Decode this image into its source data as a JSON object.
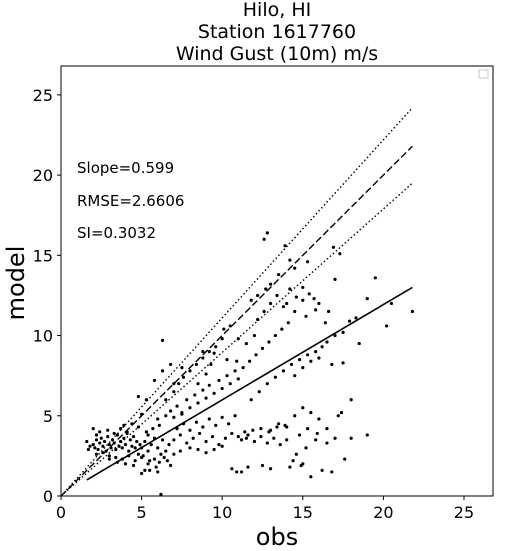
{
  "chart_data": {
    "type": "scatter",
    "title_lines": [
      "Hilo, HI",
      "Station 1617760",
      "Wind Gust (10m) m/s"
    ],
    "xlabel": "obs",
    "ylabel": "model",
    "xlim": [
      0,
      26.8
    ],
    "ylim": [
      0,
      26.8
    ],
    "xticks": [
      0,
      5,
      10,
      15,
      20,
      25
    ],
    "yticks": [
      0,
      5,
      10,
      15,
      20,
      25
    ],
    "grid": false,
    "legend": "top-right (empty)",
    "stats": [
      "Slope=0.599",
      "RMSE=2.6606",
      "SI=0.3032"
    ],
    "one_to_one_line": {
      "x": [
        0,
        21.8
      ],
      "y": [
        0,
        21.8
      ]
    },
    "bounds_lines": [
      {
        "x": [
          0,
          21.8
        ],
        "y": [
          0,
          24.2
        ]
      },
      {
        "x": [
          0,
          21.8
        ],
        "y": [
          0,
          19.5
        ]
      }
    ],
    "fit_line": {
      "x": [
        1.6,
        21.8
      ],
      "y": [
        1.0,
        13.0
      ]
    },
    "points": [
      [
        2.0,
        3.2
      ],
      [
        2.1,
        3.0
      ],
      [
        2.2,
        3.5
      ],
      [
        2.3,
        2.9
      ],
      [
        2.4,
        3.3
      ],
      [
        2.5,
        3.6
      ],
      [
        2.6,
        3.1
      ],
      [
        2.7,
        3.4
      ],
      [
        2.8,
        2.8
      ],
      [
        2.9,
        3.7
      ],
      [
        3.0,
        3.2
      ],
      [
        3.1,
        3.0
      ],
      [
        3.2,
        3.5
      ],
      [
        3.3,
        3.3
      ],
      [
        3.4,
        2.9
      ],
      [
        3.5,
        3.8
      ],
      [
        3.6,
        3.1
      ],
      [
        3.7,
        3.4
      ],
      [
        3.8,
        3.0
      ],
      [
        3.9,
        3.6
      ],
      [
        4.0,
        3.2
      ],
      [
        4.1,
        3.9
      ],
      [
        4.2,
        2.8
      ],
      [
        4.3,
        3.5
      ],
      [
        4.4,
        3.1
      ],
      [
        4.5,
        3.7
      ],
      [
        4.6,
        3.0
      ],
      [
        4.7,
        3.4
      ],
      [
        4.8,
        2.6
      ],
      [
        4.9,
        3.2
      ],
      [
        2.2,
        2.6
      ],
      [
        2.6,
        2.7
      ],
      [
        3.0,
        2.5
      ],
      [
        3.4,
        2.4
      ],
      [
        3.8,
        2.3
      ],
      [
        4.2,
        2.5
      ],
      [
        4.6,
        2.2
      ],
      [
        5.0,
        2.4
      ],
      [
        5.4,
        2.0
      ],
      [
        5.8,
        2.3
      ],
      [
        2.4,
        4.0
      ],
      [
        2.9,
        4.1
      ],
      [
        3.3,
        3.9
      ],
      [
        3.7,
        4.2
      ],
      [
        4.1,
        4.0
      ],
      [
        1.6,
        3.4
      ],
      [
        1.8,
        3.1
      ],
      [
        2.0,
        4.2
      ],
      [
        1.7,
        2.9
      ],
      [
        2.2,
        3.8
      ],
      [
        5.0,
        3.0
      ],
      [
        5.2,
        3.4
      ],
      [
        5.4,
        2.8
      ],
      [
        5.6,
        3.2
      ],
      [
        5.8,
        3.6
      ],
      [
        6.0,
        3.0
      ],
      [
        6.2,
        2.6
      ],
      [
        5.1,
        2.5
      ],
      [
        5.5,
        2.2
      ],
      [
        6.1,
        2.1
      ],
      [
        5.3,
        4.0
      ],
      [
        5.7,
        4.2
      ],
      [
        6.1,
        4.4
      ],
      [
        5.4,
        3.8
      ],
      [
        6.3,
        3.5
      ],
      [
        6.5,
        2.8
      ],
      [
        6.7,
        3.2
      ],
      [
        6.4,
        2.4
      ],
      [
        5.9,
        1.8
      ],
      [
        5.2,
        1.6
      ],
      [
        4.5,
        1.9
      ],
      [
        4.0,
        2.0
      ],
      [
        3.5,
        2.1
      ],
      [
        3.0,
        2.3
      ],
      [
        5.0,
        1.4
      ],
      [
        5.5,
        1.6
      ],
      [
        6.0,
        1.5
      ],
      [
        4.8,
        4.3
      ],
      [
        4.4,
        4.5
      ],
      [
        3.9,
        4.4
      ],
      [
        6.0,
        4.8
      ],
      [
        6.5,
        5.0
      ],
      [
        6.8,
        5.3
      ],
      [
        7.0,
        4.9
      ],
      [
        7.2,
        5.6
      ],
      [
        7.5,
        5.2
      ],
      [
        7.8,
        6.0
      ],
      [
        8.0,
        5.5
      ],
      [
        8.3,
        6.3
      ],
      [
        8.5,
        5.8
      ],
      [
        8.8,
        6.6
      ],
      [
        9.0,
        6.1
      ],
      [
        9.2,
        6.9
      ],
      [
        9.5,
        6.4
      ],
      [
        9.8,
        7.2
      ],
      [
        10.0,
        6.7
      ],
      [
        10.3,
        7.5
      ],
      [
        10.5,
        7.0
      ],
      [
        10.8,
        7.8
      ],
      [
        11.0,
        7.3
      ],
      [
        6.5,
        6.0
      ],
      [
        7.0,
        6.5
      ],
      [
        7.3,
        7.0
      ],
      [
        7.6,
        7.4
      ],
      [
        8.0,
        7.8
      ],
      [
        8.4,
        8.2
      ],
      [
        8.8,
        8.6
      ],
      [
        9.2,
        9.0
      ],
      [
        9.6,
        9.3
      ],
      [
        10.0,
        9.8
      ],
      [
        7.0,
        3.5
      ],
      [
        7.4,
        3.8
      ],
      [
        7.8,
        3.3
      ],
      [
        8.2,
        3.6
      ],
      [
        8.6,
        3.9
      ],
      [
        9.0,
        3.4
      ],
      [
        9.4,
        3.7
      ],
      [
        9.8,
        3.2
      ],
      [
        10.2,
        3.6
      ],
      [
        10.6,
        3.9
      ],
      [
        7.2,
        4.2
      ],
      [
        7.6,
        4.5
      ],
      [
        8.0,
        4.1
      ],
      [
        8.4,
        4.6
      ],
      [
        8.8,
        4.3
      ],
      [
        9.2,
        4.8
      ],
      [
        9.6,
        4.4
      ],
      [
        10.0,
        4.9
      ],
      [
        10.4,
        4.5
      ],
      [
        10.8,
        5.0
      ],
      [
        11.2,
        3.5
      ],
      [
        11.6,
        3.8
      ],
      [
        12.0,
        3.4
      ],
      [
        12.4,
        3.7
      ],
      [
        12.8,
        3.3
      ],
      [
        13.2,
        3.6
      ],
      [
        13.6,
        3.2
      ],
      [
        14.0,
        3.5
      ],
      [
        11.0,
        3.7
      ],
      [
        11.5,
        3.6
      ],
      [
        11.3,
        8.0
      ],
      [
        11.7,
        8.4
      ],
      [
        12.1,
        8.8
      ],
      [
        12.5,
        9.2
      ],
      [
        12.9,
        9.6
      ],
      [
        13.3,
        10.0
      ],
      [
        13.7,
        10.4
      ],
      [
        14.1,
        10.8
      ],
      [
        11.5,
        9.5
      ],
      [
        12.0,
        10.0
      ],
      [
        12.2,
        11.0
      ],
      [
        12.6,
        11.5
      ],
      [
        13.0,
        12.0
      ],
      [
        13.4,
        12.5
      ],
      [
        12.7,
        12.9
      ],
      [
        13.0,
        13.2
      ],
      [
        14.2,
        12.9
      ],
      [
        15.0,
        12.2
      ],
      [
        14.5,
        11.5
      ],
      [
        13.8,
        11.8
      ],
      [
        11.8,
        6.0
      ],
      [
        12.3,
        6.5
      ],
      [
        12.8,
        7.0
      ],
      [
        13.3,
        7.4
      ],
      [
        13.8,
        7.8
      ],
      [
        14.3,
        8.2
      ],
      [
        14.8,
        8.5
      ],
      [
        15.3,
        8.8
      ],
      [
        15.8,
        9.0
      ],
      [
        16.2,
        9.3
      ],
      [
        14.5,
        7.5
      ],
      [
        15.0,
        8.0
      ],
      [
        15.5,
        8.4
      ],
      [
        16.0,
        8.6
      ],
      [
        16.5,
        9.6
      ],
      [
        17.0,
        10.0
      ],
      [
        17.5,
        10.2
      ],
      [
        15.2,
        11.2
      ],
      [
        15.8,
        11.6
      ],
      [
        16.4,
        10.8
      ],
      [
        14.0,
        12.0
      ],
      [
        14.6,
        12.4
      ],
      [
        15.0,
        13.0
      ],
      [
        15.4,
        12.6
      ],
      [
        16.0,
        12.0
      ],
      [
        16.6,
        11.5
      ],
      [
        17.0,
        13.5
      ],
      [
        17.3,
        15.1
      ],
      [
        16.9,
        15.5
      ],
      [
        15.3,
        14.6
      ],
      [
        12.8,
        16.4
      ],
      [
        12.6,
        16.0
      ],
      [
        14.2,
        14.7
      ],
      [
        13.9,
        15.6
      ],
      [
        14.5,
        14.2
      ],
      [
        13.5,
        13.8
      ],
      [
        12.2,
        12.5
      ],
      [
        11.8,
        12.2
      ],
      [
        17.5,
        8.3
      ],
      [
        18.0,
        6.0
      ],
      [
        11.6,
        1.8
      ],
      [
        11.2,
        1.5
      ],
      [
        12.5,
        1.9
      ],
      [
        13.0,
        1.7
      ],
      [
        14.2,
        1.8
      ],
      [
        15.5,
        1.2
      ],
      [
        16.2,
        1.6
      ],
      [
        16.8,
        1.5
      ],
      [
        15.0,
        2.0
      ],
      [
        14.6,
        2.6
      ],
      [
        13.0,
        4.1
      ],
      [
        13.5,
        4.5
      ],
      [
        14.0,
        4.3
      ],
      [
        14.5,
        5.0
      ],
      [
        15.0,
        5.5
      ],
      [
        15.5,
        5.2
      ],
      [
        16.0,
        4.8
      ],
      [
        16.5,
        4.2
      ],
      [
        15.2,
        3.0
      ],
      [
        15.8,
        3.5
      ],
      [
        14.8,
        3.8
      ],
      [
        15.3,
        4.2
      ],
      [
        15.9,
        3.9
      ],
      [
        16.5,
        3.3
      ],
      [
        17.0,
        3.6
      ],
      [
        17.4,
        5.2
      ],
      [
        17.2,
        5.0
      ],
      [
        18.0,
        3.6
      ],
      [
        19.0,
        3.8
      ],
      [
        17.6,
        2.3
      ],
      [
        17.9,
        10.9
      ],
      [
        18.3,
        11.1
      ],
      [
        19.5,
        13.6
      ],
      [
        20.2,
        10.6
      ],
      [
        21.8,
        11.5
      ],
      [
        19.0,
        12.3
      ],
      [
        20.5,
        12.0
      ],
      [
        18.5,
        9.5
      ],
      [
        16.8,
        8.2
      ],
      [
        15.7,
        12.3
      ],
      [
        6.3,
        9.7
      ],
      [
        6.8,
        8.2
      ],
      [
        7.5,
        5.1
      ],
      [
        5.3,
        6.0
      ],
      [
        5.0,
        5.1
      ],
      [
        4.8,
        6.2
      ],
      [
        5.8,
        7.2
      ],
      [
        6.3,
        7.8
      ],
      [
        7.0,
        7.0
      ],
      [
        7.5,
        8.0
      ],
      [
        8.8,
        9.0
      ],
      [
        9.5,
        8.9
      ],
      [
        10.1,
        10.4
      ],
      [
        10.5,
        10.6
      ],
      [
        11.0,
        9.8
      ],
      [
        8.5,
        7.0
      ],
      [
        9.0,
        7.6
      ],
      [
        9.3,
        8.2
      ],
      [
        10.3,
        8.5
      ],
      [
        10.9,
        8.4
      ],
      [
        6.2,
        0.1
      ],
      [
        6.6,
        2.2
      ],
      [
        7.0,
        2.6
      ],
      [
        6.8,
        1.9
      ],
      [
        7.4,
        2.8
      ],
      [
        8.0,
        3.0
      ],
      [
        8.5,
        2.9
      ],
      [
        9.0,
        2.7
      ],
      [
        9.5,
        2.9
      ],
      [
        10.0,
        3.1
      ],
      [
        10.6,
        1.7
      ],
      [
        10.9,
        1.5
      ],
      [
        11.4,
        4.0
      ],
      [
        11.9,
        4.1
      ],
      [
        12.4,
        4.2
      ],
      [
        12.9,
        4.0
      ],
      [
        13.4,
        4.3
      ],
      [
        13.9,
        4.4
      ],
      [
        14.4,
        2.2
      ],
      [
        14.9,
        1.9
      ]
    ]
  }
}
